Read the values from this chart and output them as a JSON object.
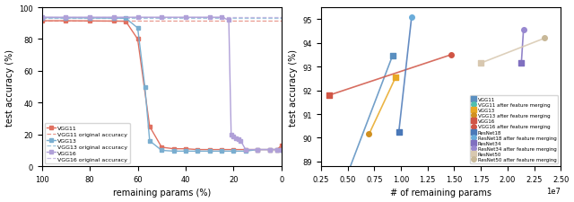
{
  "left": {
    "vgg11": {
      "x": [
        100,
        90,
        80,
        70,
        65,
        60,
        55,
        50,
        45,
        40,
        35,
        30,
        25,
        20,
        15,
        10,
        5,
        2,
        0
      ],
      "y": [
        91.5,
        91.5,
        91.4,
        91.3,
        91.2,
        80.0,
        25.0,
        12.0,
        11.0,
        11.0,
        10.5,
        10.5,
        10.5,
        10.5,
        10.5,
        10.5,
        10.5,
        10.5,
        13.0
      ],
      "color": "#e07060",
      "orig_acc": 91.5,
      "orig_color": "#e07060",
      "label": "VGG11",
      "orig_label": "VGG11 original accuracy"
    },
    "vgg13": {
      "x": [
        100,
        90,
        80,
        70,
        65,
        60,
        57,
        55,
        50,
        45,
        40,
        35,
        30,
        25,
        20,
        15,
        10,
        5,
        2,
        0
      ],
      "y": [
        93.5,
        93.4,
        93.3,
        93.2,
        93.1,
        87.0,
        50.0,
        16.0,
        10.0,
        9.5,
        9.5,
        9.5,
        9.5,
        9.5,
        9.5,
        9.5,
        10.5,
        10.5,
        10.5,
        10.5
      ],
      "color": "#7aaed0",
      "orig_acc": 93.5,
      "orig_color": "#7aaed0",
      "label": "VGG13",
      "orig_label": "VGG13 original accuracy"
    },
    "vgg16": {
      "x": [
        100,
        90,
        80,
        70,
        60,
        50,
        40,
        30,
        25,
        22,
        21,
        20,
        19,
        18,
        17,
        15,
        10,
        5,
        2,
        0
      ],
      "y": [
        93.7,
        93.7,
        93.7,
        93.7,
        93.7,
        93.7,
        93.7,
        93.7,
        93.7,
        92.0,
        20.0,
        19.0,
        17.5,
        17.0,
        16.0,
        10.5,
        10.5,
        10.5,
        10.5,
        10.5
      ],
      "color": "#b0a0d8",
      "orig_acc": 93.7,
      "orig_color": "#b0a0d8",
      "label": "VGG16",
      "orig_label": "VGG16 original accuracy"
    },
    "xlabel": "remaining params (%)",
    "ylabel": "test accuracy (%)",
    "xlim": [
      100,
      0
    ],
    "ylim": [
      0,
      100
    ]
  },
  "right": {
    "vgg11": {
      "x_before": 9200000.0,
      "y_before": 93.45,
      "x_after": 5000000.0,
      "y_after": 88.5,
      "color_before": "#5a8fc0",
      "color_after": "#50c0b0",
      "label_before": "VGG11",
      "label_after": "VGG11 after feature merging"
    },
    "vgg13": {
      "x_before": 9500000.0,
      "y_before": 92.55,
      "x_after": 7000000.0,
      "y_after": 90.15,
      "color_before": "#e8a825",
      "color_after": "#d09020",
      "label_before": "VGG13",
      "label_after": "VGG13 after feature merging"
    },
    "vgg16": {
      "x_before": 3300000.0,
      "y_before": 91.8,
      "x_after": 14700000.0,
      "y_after": 93.5,
      "color_before": "#d05545",
      "color_after": "#d05545",
      "label_before": "VGG16",
      "label_after": "VGG16 after feature merging"
    },
    "resnet18": {
      "x_before": 9800000.0,
      "y_before": 90.25,
      "x_after": 11000000.0,
      "y_after": 95.1,
      "color_before": "#4a78b8",
      "color_after": "#6aacda",
      "label_before": "ResNet18",
      "label_after": "ResNet18 after feature merging"
    },
    "resnet34": {
      "x_before": 21300000.0,
      "y_before": 93.15,
      "x_after": 21500000.0,
      "y_after": 94.55,
      "color_before": "#8070c0",
      "color_after": "#9888d0",
      "label_before": "ResNet34",
      "label_after": "ResNet34 after feature merging"
    },
    "resnet50": {
      "x_before": 17500000.0,
      "y_before": 93.15,
      "x_after": 23500000.0,
      "y_after": 94.2,
      "color_before": "#d8c8b0",
      "color_after": "#c8b898",
      "label_before": "ResNet50",
      "label_after": "ResNet50 after feature merging"
    },
    "xlabel": "# of remaining params",
    "ylabel": "test accuracy (%)",
    "xlim": [
      2500000.0,
      25000000.0
    ],
    "ylim": [
      88.8,
      95.5
    ]
  }
}
